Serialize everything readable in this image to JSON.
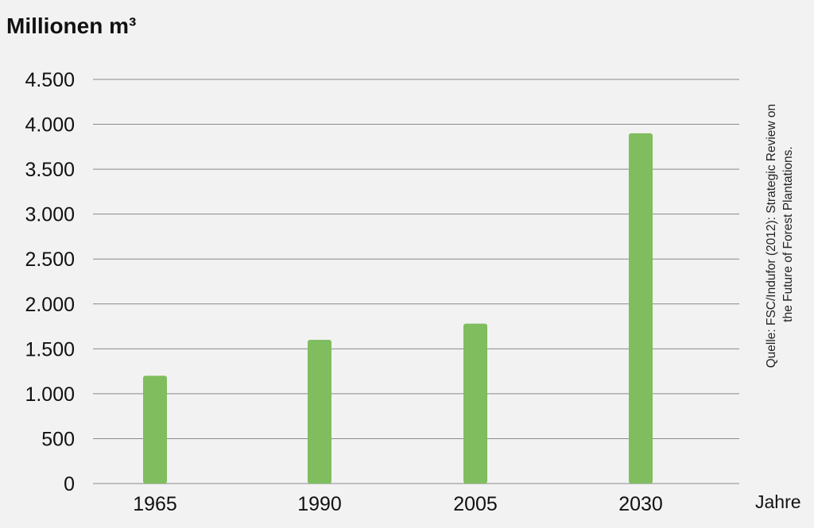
{
  "chart_data": {
    "type": "bar",
    "title": "",
    "ylabel": "Millionen m³",
    "xlabel": "Jahre",
    "categories": [
      "1965",
      "1990",
      "2005",
      "2030"
    ],
    "values": [
      1200,
      1600,
      1780,
      3900
    ],
    "ylim": [
      0,
      4500
    ],
    "yticks": [
      {
        "value": 0,
        "label": "0"
      },
      {
        "value": 500,
        "label": "500"
      },
      {
        "value": 1000,
        "label": "1.000"
      },
      {
        "value": 1500,
        "label": "1.500"
      },
      {
        "value": 2000,
        "label": "2.000"
      },
      {
        "value": 2500,
        "label": "2.500"
      },
      {
        "value": 3000,
        "label": "3.000"
      },
      {
        "value": 3500,
        "label": "3.500"
      },
      {
        "value": 4000,
        "label": "4.000"
      },
      {
        "value": 4500,
        "label": "4.500"
      }
    ],
    "grid": true,
    "bar_color": "#7fbd5e",
    "source_lines": [
      "Quelle: FSC/Indufor (2012): Strategic Review on",
      "the Future of Forest Plantations."
    ]
  }
}
